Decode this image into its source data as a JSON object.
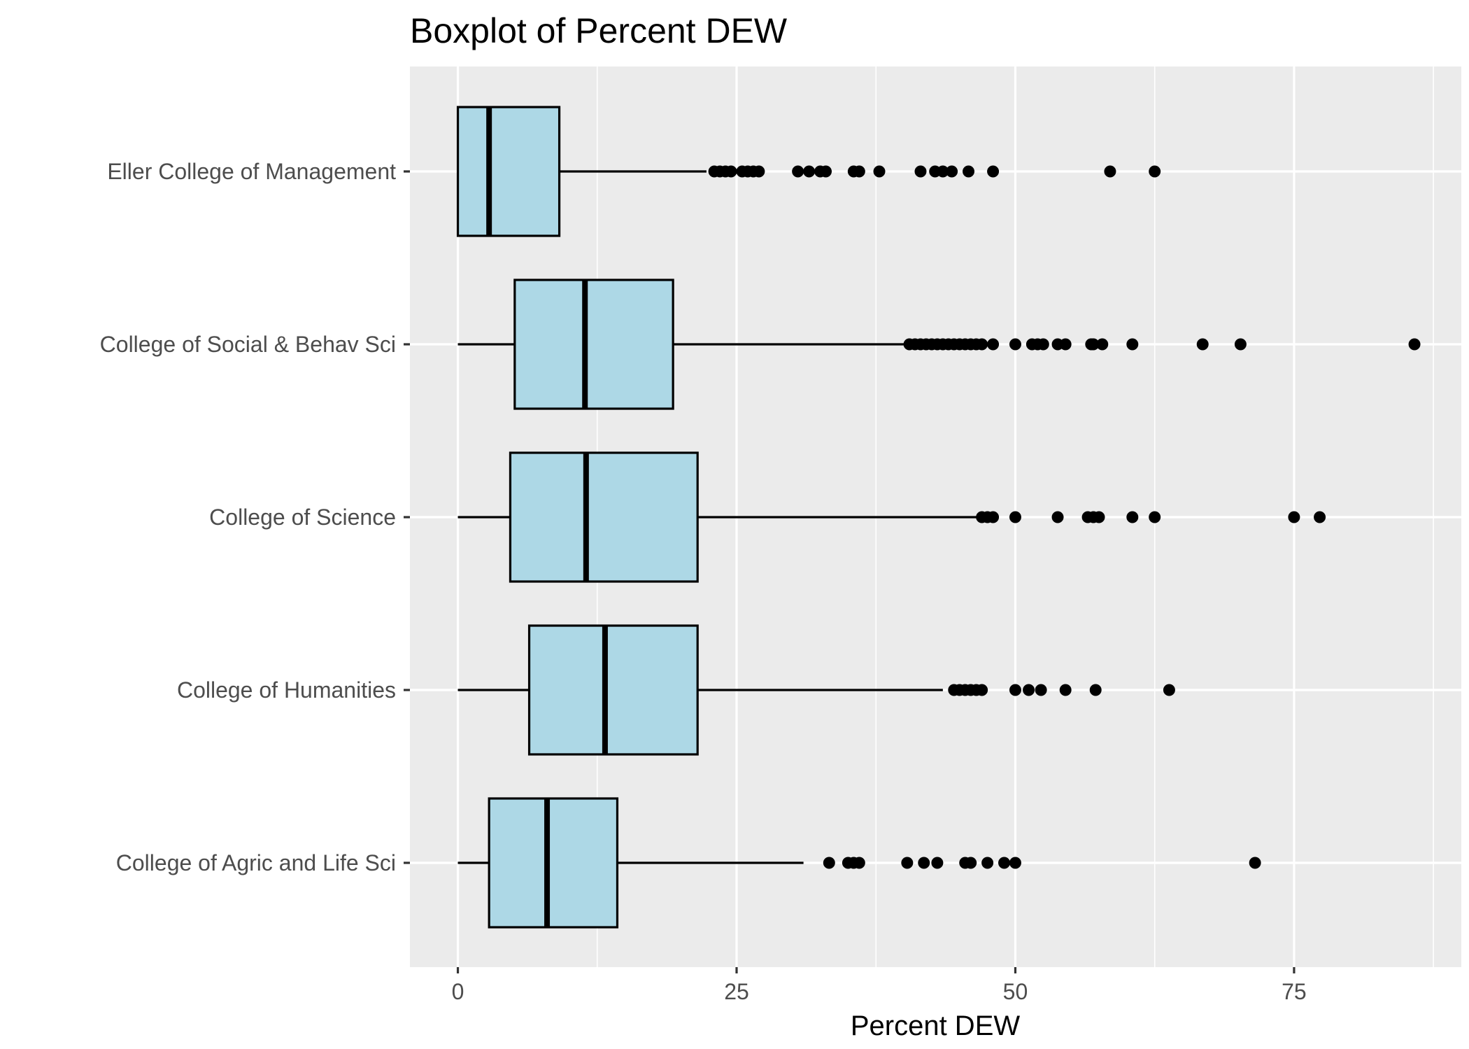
{
  "chart_data": {
    "type": "boxplot",
    "orientation": "horizontal",
    "title": "Boxplot of Percent DEW",
    "xlabel": "Percent DEW",
    "ylabel": "",
    "xlim": [
      -4.3,
      90
    ],
    "x_ticks": [
      0,
      25,
      50,
      75
    ],
    "x_tick_labels": [
      "0",
      "25",
      "50",
      "75"
    ],
    "grid": true,
    "legend": "none",
    "colors": {
      "panel": "#ebebeb",
      "grid": "#ffffff",
      "box_fill": "#add8e6",
      "box_stroke": "#000000",
      "outlier": "#000000"
    },
    "categories": [
      "Eller College of Management",
      "College of Social & Behav Sci",
      "College of Science",
      "College of Humanities",
      "College of Agric and Life Sci"
    ],
    "boxes": [
      {
        "category": "Eller College of Management",
        "whisker_low": 0,
        "q1": 0,
        "median": 2.8,
        "q3": 9.1,
        "whisker_high": 22.3,
        "outliers": [
          23,
          23.5,
          24,
          24.5,
          25.5,
          26,
          26.5,
          27,
          30.5,
          31.5,
          32.5,
          33,
          35.5,
          36,
          37.8,
          41.5,
          42.8,
          43.5,
          44.3,
          45.8,
          48,
          58.5,
          62.5
        ]
      },
      {
        "category": "College of Social & Behav Sci",
        "whisker_low": 0,
        "q1": 5.1,
        "median": 11.4,
        "q3": 19.3,
        "whisker_high": 40.2,
        "outliers": [
          40.5,
          41,
          41.5,
          42,
          42.5,
          43,
          43.5,
          44,
          44.5,
          45,
          45.5,
          46,
          46.5,
          47,
          48,
          50,
          51.5,
          52,
          52.5,
          53.8,
          54.5,
          56.8,
          57,
          57.8,
          60.5,
          66.8,
          70.2,
          85.8
        ]
      },
      {
        "category": "College of Science",
        "whisker_low": 0,
        "q1": 4.7,
        "median": 11.5,
        "q3": 21.5,
        "whisker_high": 46.8,
        "outliers": [
          47,
          47.5,
          48,
          50,
          53.8,
          56.5,
          57,
          57.5,
          60.5,
          62.5,
          75,
          77.3
        ]
      },
      {
        "category": "College of Humanities",
        "whisker_low": 0,
        "q1": 6.4,
        "median": 13.2,
        "q3": 21.5,
        "whisker_high": 43.5,
        "outliers": [
          44.5,
          45,
          45.5,
          46,
          46.5,
          47,
          50,
          51.2,
          52.3,
          54.5,
          57.2,
          63.8
        ]
      },
      {
        "category": "College of Agric and Life Sci",
        "whisker_low": 0,
        "q1": 2.8,
        "median": 8,
        "q3": 14.3,
        "whisker_high": 31,
        "outliers": [
          33.3,
          35,
          35.5,
          36,
          40.3,
          41.8,
          43,
          45.5,
          46,
          47.5,
          49,
          50,
          71.5
        ]
      }
    ]
  }
}
